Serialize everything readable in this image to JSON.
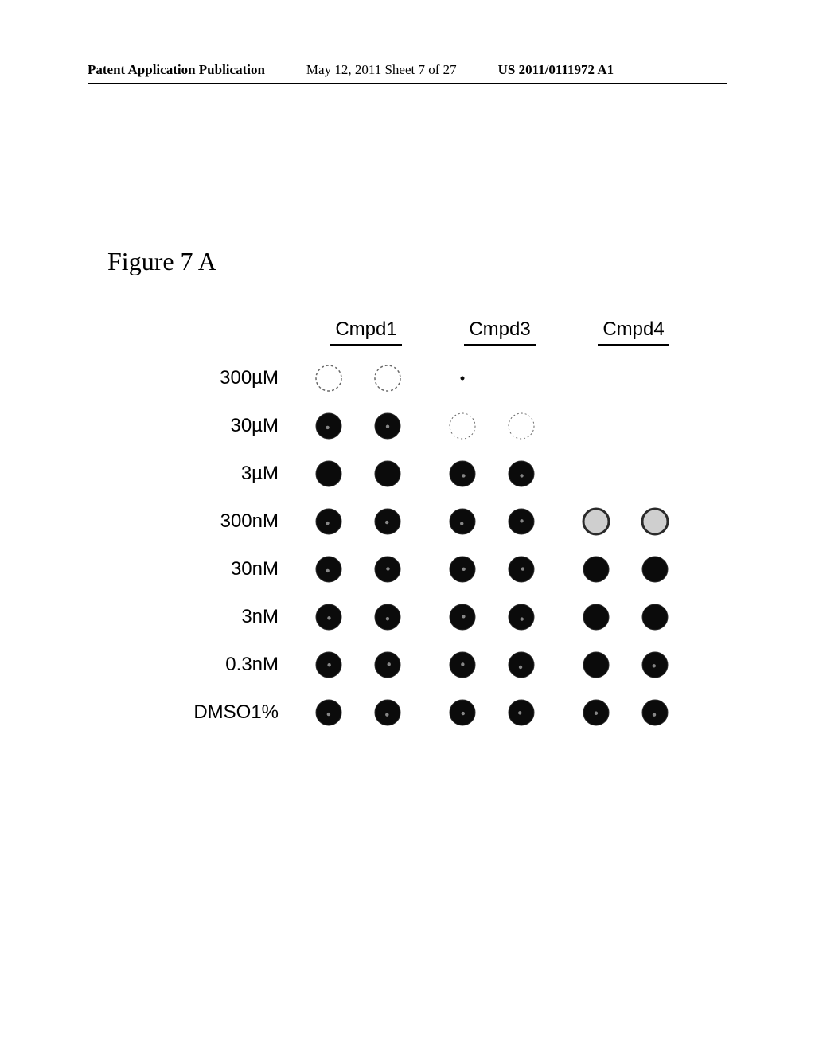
{
  "header": {
    "left": "Patent Application Publication",
    "center": "May 12, 2011  Sheet 7 of 27",
    "right": "US 2011/0111972 A1"
  },
  "figure": {
    "title": "Figure 7 A",
    "columns": [
      "Cmpd1",
      "Cmpd3",
      "Cmpd4"
    ],
    "row_labels": [
      "300µM",
      "30µM",
      "3µM",
      "300nM",
      "30nM",
      "3nM",
      "0.3nM",
      "DMSO1%"
    ],
    "dot_radius": 16,
    "colors": {
      "fill_dark": "#0b0b0b",
      "fill_empty": "#ffffff",
      "outline": "#2a2a2a",
      "faint_outline": "#6a6a6a",
      "highlight": "#eeeeee"
    },
    "matrix": [
      [
        {
          "f": 0,
          "o": 1,
          "sty": "dashed"
        },
        {
          "f": 0,
          "o": 1,
          "sty": "dashed"
        },
        {
          "f": 0,
          "o": 0,
          "speck": true
        },
        {
          "f": 0,
          "o": 0
        },
        {
          "f": 0,
          "o": 0
        },
        {
          "f": 0,
          "o": 0
        }
      ],
      [
        {
          "f": 1,
          "o": 1,
          "h": true
        },
        {
          "f": 1,
          "o": 1,
          "h": true
        },
        {
          "f": 0,
          "o": 1,
          "sty": "faint"
        },
        {
          "f": 0,
          "o": 1,
          "sty": "faint"
        },
        {
          "f": 0,
          "o": 0
        },
        {
          "f": 0,
          "o": 0
        }
      ],
      [
        {
          "f": 1,
          "o": 1
        },
        {
          "f": 1,
          "o": 1
        },
        {
          "f": 1,
          "o": 1,
          "h": true
        },
        {
          "f": 1,
          "o": 1,
          "h": true
        },
        {
          "f": 0,
          "o": 0
        },
        {
          "f": 0,
          "o": 0
        }
      ],
      [
        {
          "f": 1,
          "o": 1,
          "h": true
        },
        {
          "f": 1,
          "o": 1,
          "h": true
        },
        {
          "f": 1,
          "o": 1,
          "h": true
        },
        {
          "f": 1,
          "o": 1,
          "h": true
        },
        {
          "f": 0,
          "o": 1,
          "sty": "ring"
        },
        {
          "f": 0,
          "o": 1,
          "sty": "ring"
        }
      ],
      [
        {
          "f": 1,
          "o": 1,
          "h": true
        },
        {
          "f": 1,
          "o": 1,
          "h": true
        },
        {
          "f": 1,
          "o": 1,
          "h": true
        },
        {
          "f": 1,
          "o": 1,
          "h": true
        },
        {
          "f": 1,
          "o": 1
        },
        {
          "f": 1,
          "o": 1
        }
      ],
      [
        {
          "f": 1,
          "o": 1,
          "h": true
        },
        {
          "f": 1,
          "o": 1,
          "h": true
        },
        {
          "f": 1,
          "o": 1,
          "h": true
        },
        {
          "f": 1,
          "o": 1,
          "h": true
        },
        {
          "f": 1,
          "o": 1
        },
        {
          "f": 1,
          "o": 1
        }
      ],
      [
        {
          "f": 1,
          "o": 1,
          "h": true
        },
        {
          "f": 1,
          "o": 1,
          "h": true
        },
        {
          "f": 1,
          "o": 1,
          "h": true
        },
        {
          "f": 1,
          "o": 1,
          "h": true
        },
        {
          "f": 1,
          "o": 1
        },
        {
          "f": 1,
          "o": 1,
          "h": true
        }
      ],
      [
        {
          "f": 1,
          "o": 1,
          "h": true
        },
        {
          "f": 1,
          "o": 1,
          "h": true
        },
        {
          "f": 1,
          "o": 1,
          "h": true
        },
        {
          "f": 1,
          "o": 1,
          "h": true
        },
        {
          "f": 1,
          "o": 1,
          "h": true
        },
        {
          "f": 1,
          "o": 1,
          "h": true
        }
      ]
    ]
  }
}
